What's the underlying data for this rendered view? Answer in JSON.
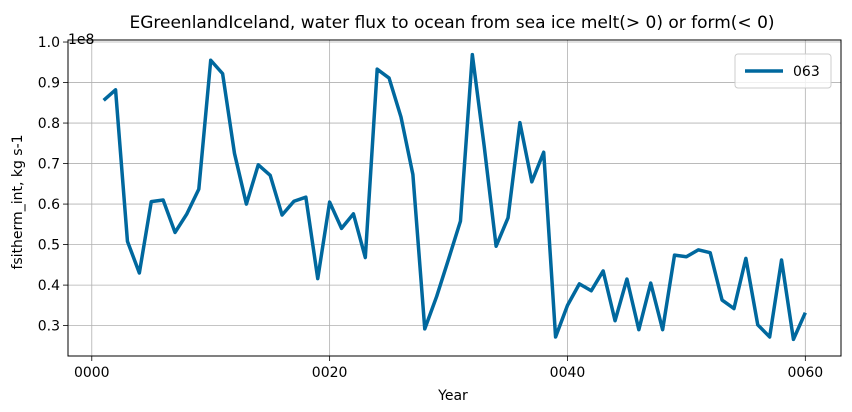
{
  "chart_data": {
    "type": "line",
    "title": "EGreenlandIceland, water flux to ocean from sea ice melt(> 0) or form(< 0)",
    "xlabel": "Year",
    "ylabel": "fsitherm_int, kg s-1",
    "y_multiplier": "1e8",
    "xlim": [
      -2,
      63
    ],
    "ylim": [
      0.225,
      1.005
    ],
    "x_ticks": [
      0,
      20,
      40,
      60
    ],
    "x_tick_labels": [
      "0000",
      "0020",
      "0040",
      "0060"
    ],
    "y_ticks": [
      0.3,
      0.4,
      0.5,
      0.6,
      0.7,
      0.8,
      0.9,
      1.0
    ],
    "y_tick_labels": [
      "0.3",
      "0.4",
      "0.5",
      "0.6",
      "0.7",
      "0.8",
      "0.9",
      "1.0"
    ],
    "grid": true,
    "legend_position": "top-right",
    "line_color": "#00689e",
    "series": [
      {
        "name": "063",
        "x": [
          1,
          2,
          3,
          4,
          5,
          6,
          7,
          8,
          9,
          10,
          11,
          12,
          13,
          14,
          15,
          16,
          17,
          18,
          19,
          20,
          21,
          22,
          23,
          24,
          25,
          26,
          27,
          28,
          29,
          30,
          31,
          32,
          33,
          34,
          35,
          36,
          37,
          38,
          39,
          40,
          41,
          42,
          43,
          44,
          45,
          46,
          47,
          48,
          49,
          50,
          51,
          52,
          53,
          54,
          55,
          56,
          57,
          58,
          59,
          60
        ],
        "values": [
          0.856,
          0.882,
          0.508,
          0.43,
          0.606,
          0.61,
          0.53,
          0.576,
          0.637,
          0.955,
          0.922,
          0.725,
          0.6,
          0.697,
          0.671,
          0.573,
          0.607,
          0.617,
          0.416,
          0.605,
          0.54,
          0.576,
          0.468,
          0.933,
          0.911,
          0.815,
          0.673,
          0.292,
          0.372,
          0.464,
          0.558,
          0.969,
          0.742,
          0.496,
          0.566,
          0.801,
          0.655,
          0.728,
          0.272,
          0.35,
          0.403,
          0.386,
          0.435,
          0.312,
          0.415,
          0.29,
          0.405,
          0.29,
          0.474,
          0.47,
          0.487,
          0.48,
          0.363,
          0.342,
          0.466,
          0.302,
          0.272,
          0.462,
          0.266,
          0.332
        ]
      }
    ]
  }
}
